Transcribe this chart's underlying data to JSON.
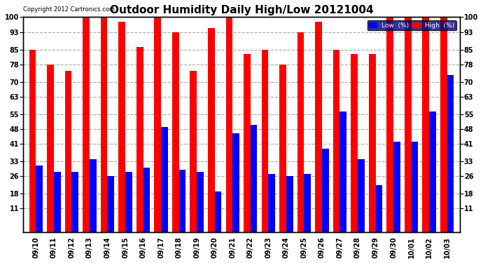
{
  "title": "Outdoor Humidity Daily High/Low 20121004",
  "copyright": "Copyright 2012 Cartronics.com",
  "categories": [
    "09/10",
    "09/11",
    "09/12",
    "09/13",
    "09/14",
    "09/15",
    "09/16",
    "09/17",
    "09/18",
    "09/19",
    "09/20",
    "09/21",
    "09/22",
    "09/23",
    "09/24",
    "09/25",
    "09/26",
    "09/27",
    "09/28",
    "09/29",
    "09/30",
    "10/01",
    "10/02",
    "10/03"
  ],
  "high_values": [
    85,
    78,
    75,
    100,
    100,
    98,
    86,
    100,
    93,
    75,
    95,
    100,
    83,
    85,
    78,
    93,
    98,
    85,
    83,
    83,
    100,
    100,
    100,
    100
  ],
  "low_values": [
    31,
    28,
    28,
    34,
    26,
    28,
    30,
    49,
    29,
    28,
    19,
    46,
    50,
    27,
    26,
    27,
    39,
    56,
    34,
    22,
    42,
    42,
    56,
    73
  ],
  "high_color": "#ff0000",
  "low_color": "#0000ff",
  "bg_color": "#ffffff",
  "plot_bg_color": "#ffffff",
  "grid_color": "#aaaaaa",
  "ylim": [
    0,
    100
  ],
  "yticks": [
    11,
    18,
    26,
    33,
    41,
    48,
    55,
    63,
    70,
    78,
    85,
    93,
    100
  ],
  "title_fontsize": 11,
  "tick_fontsize": 7,
  "bar_width": 0.38,
  "legend_low_label": "Low  (%)",
  "legend_high_label": "High  (%)"
}
